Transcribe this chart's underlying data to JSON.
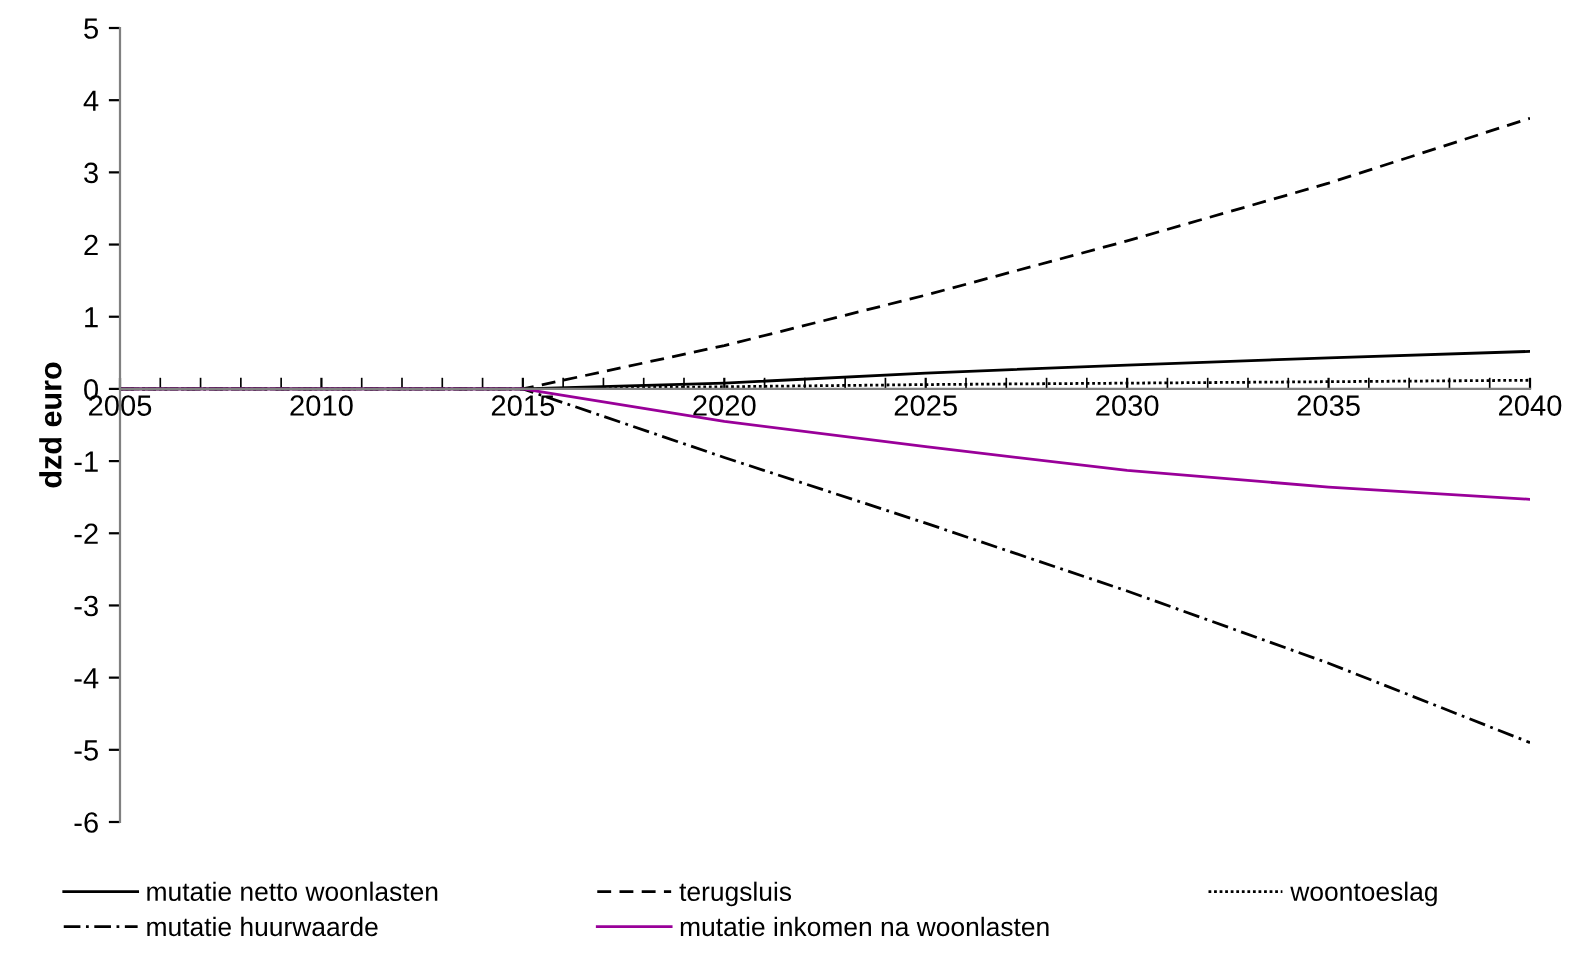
{
  "chart_data": {
    "type": "line",
    "ylabel": "dzd euro",
    "xlim": [
      2005,
      2040
    ],
    "ylim": [
      -6,
      5
    ],
    "xticks": [
      2005,
      2010,
      2015,
      2020,
      2025,
      2030,
      2035,
      2040
    ],
    "yticks": [
      -6,
      -5,
      -4,
      -3,
      -2,
      -1,
      0,
      1,
      2,
      3,
      4,
      5
    ],
    "grid": false,
    "legend": "bottom",
    "marker": "none",
    "series": [
      {
        "name": "mutatie netto woonlasten",
        "color": "#000000",
        "line_style": "solid",
        "x": [
          2005,
          2015,
          2020,
          2025,
          2030,
          2035,
          2040
        ],
        "values": [
          0,
          0,
          0.08,
          0.22,
          0.33,
          0.43,
          0.52
        ]
      },
      {
        "name": "terugsluis",
        "color": "#000000",
        "line_style": "dashed",
        "x": [
          2005,
          2015,
          2020,
          2025,
          2030,
          2035,
          2040
        ],
        "values": [
          0,
          0,
          0.6,
          1.3,
          2.05,
          2.85,
          3.75
        ]
      },
      {
        "name": "woontoeslag",
        "color": "#000000",
        "line_style": "dotted",
        "x": [
          2005,
          2015,
          2020,
          2025,
          2030,
          2035,
          2040
        ],
        "values": [
          0,
          0,
          0.03,
          0.06,
          0.08,
          0.1,
          0.12
        ]
      },
      {
        "name": "mutatie huurwaarde",
        "color": "#000000",
        "line_style": "dashdot",
        "x": [
          2005,
          2015,
          2020,
          2025,
          2030,
          2035,
          2040
        ],
        "values": [
          0,
          0,
          -0.95,
          -1.86,
          -2.8,
          -3.8,
          -4.9
        ]
      },
      {
        "name": "mutatie inkomen na woonlasten",
        "color": "#990099",
        "line_style": "solid",
        "x": [
          2005,
          2015,
          2020,
          2025,
          2030,
          2035,
          2040
        ],
        "values": [
          0,
          0,
          -0.45,
          -0.8,
          -1.13,
          -1.36,
          -1.53
        ]
      }
    ]
  }
}
